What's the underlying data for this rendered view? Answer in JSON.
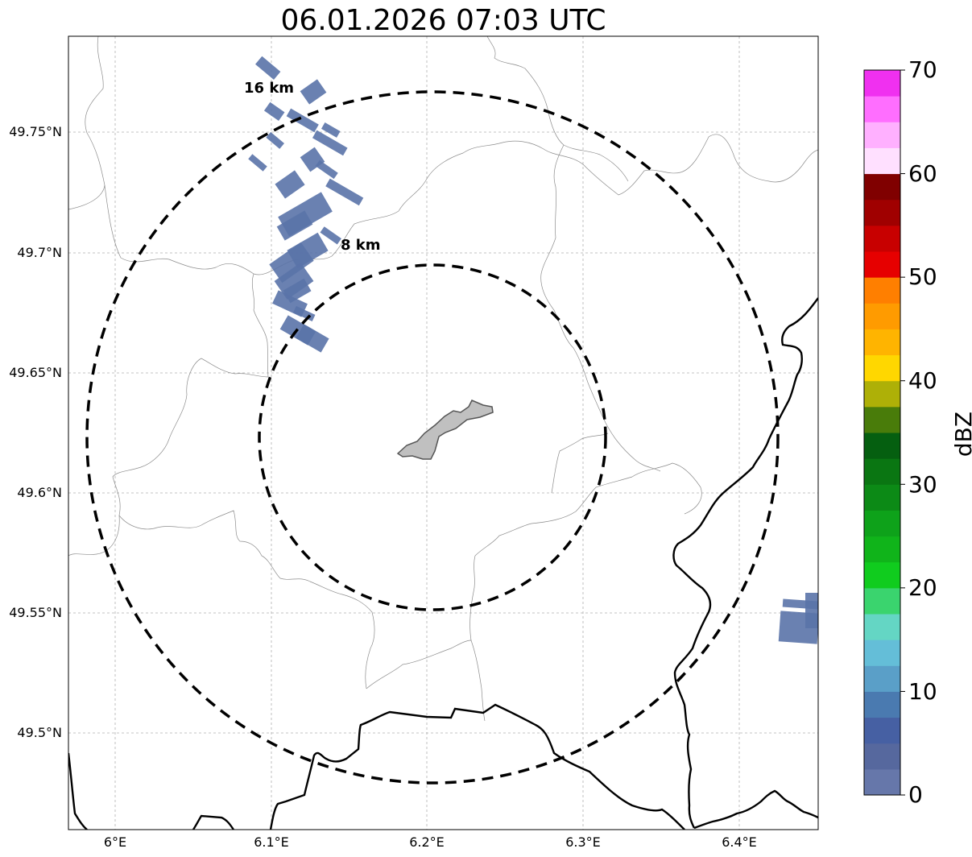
{
  "map": {
    "title": "06.01.2026 07:03 UTC",
    "x_ticks": [
      "6°E",
      "6.1°E",
      "6.2°E",
      "6.3°E",
      "6.4°E"
    ],
    "y_ticks": [
      "49.75°N",
      "49.7°N",
      "49.65°N",
      "49.6°N",
      "49.55°N",
      "49.5°N"
    ],
    "range_rings": [
      {
        "label": "16 km"
      },
      {
        "label": "8 km"
      }
    ],
    "gridlines": true,
    "radar_echo_color": "#5a73a8",
    "town_fill_color": "#c0c0c0"
  },
  "colorbar": {
    "label": "dBZ",
    "ticks": [
      "0",
      "10",
      "20",
      "30",
      "40",
      "50",
      "60",
      "70"
    ],
    "range": [
      0,
      70
    ],
    "step": 2.5,
    "colors": [
      "#6677aa",
      "#56689e",
      "#4660a3",
      "#4a7ab0",
      "#5a9fc8",
      "#64bed8",
      "#64d6c4",
      "#3ad46e",
      "#10cc1e",
      "#10b41a",
      "#0ea21a",
      "#0c8a16",
      "#0a7612",
      "#055f10",
      "#497c0a",
      "#aeb007",
      "#ffd700",
      "#ffb400",
      "#ff9b00",
      "#ff7f00",
      "#e60000",
      "#c80000",
      "#a00000",
      "#800000",
      "#ffe0ff",
      "#ffb0ff",
      "#ff6eff",
      "#f030f0"
    ]
  }
}
